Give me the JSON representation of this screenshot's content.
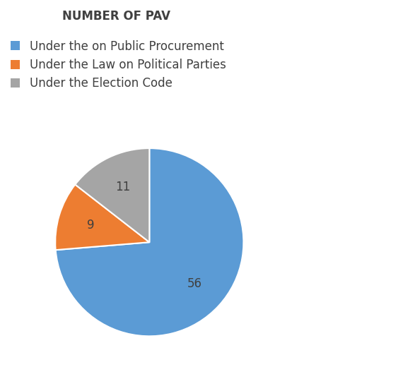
{
  "chart_data": {
    "type": "pie",
    "title": "NUMBER OF PAV",
    "categories": [
      "Under the on Public Procurement",
      "Under the Law on Political Parties",
      "Under the Election Code"
    ],
    "values": [
      56,
      9,
      11
    ],
    "colors": [
      "#5b9bd5",
      "#ed7d31",
      "#a5a5a5"
    ],
    "data_labels": true,
    "legend": "upper left"
  }
}
